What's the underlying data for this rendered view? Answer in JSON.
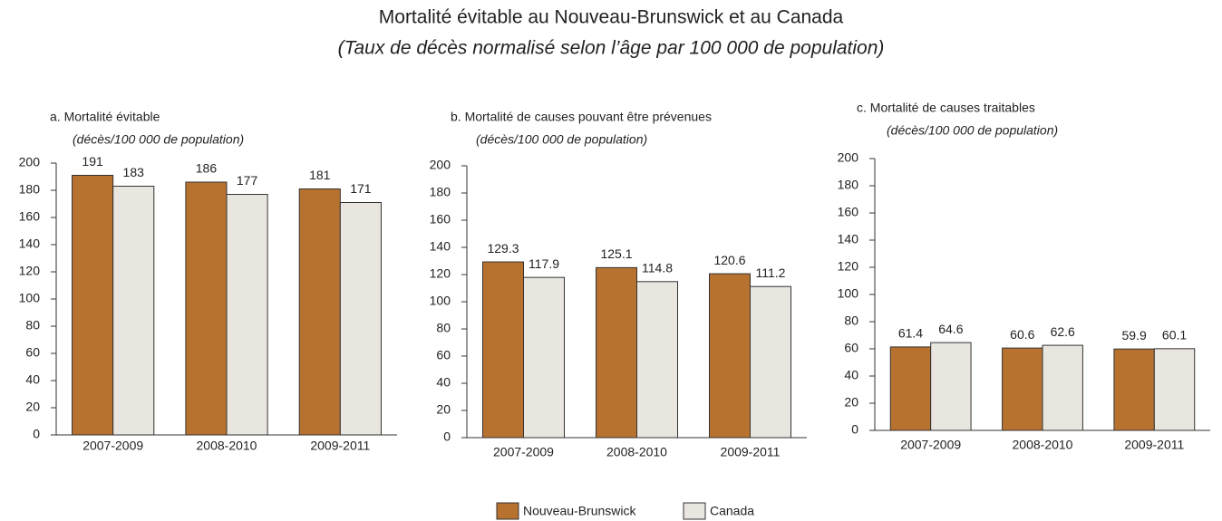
{
  "title": "Mortalité évitable au Nouveau-Brunswick et au Canada",
  "subtitle": "(Taux de décès normalisé selon l’âge par 100 000 de population)",
  "chart_data": [
    {
      "type": "bar",
      "title": "a.  Mortalité évitable",
      "subtitle": "(décès/100 000 de population)",
      "categories": [
        "2007-2009",
        "2008-2010",
        "2009-2011"
      ],
      "series": [
        {
          "name": "Nouveau-Brunswick",
          "color": "#b8722f",
          "values": [
            191,
            186,
            181
          ]
        },
        {
          "name": "Canada",
          "color": "#e9e5df",
          "values": [
            183,
            177,
            171
          ]
        }
      ],
      "ylim": [
        0,
        200
      ],
      "yticks": [
        0,
        20,
        40,
        60,
        80,
        100,
        120,
        140,
        160,
        180,
        200
      ]
    },
    {
      "type": "bar",
      "title": "b.  Mortalité de causes pouvant être prévenues",
      "subtitle": "(décès/100 000 de population)",
      "categories": [
        "2007-2009",
        "2008-2010",
        "2009-2011"
      ],
      "series": [
        {
          "name": "Nouveau-Brunswick",
          "color": "#b8722f",
          "values": [
            129.3,
            125.1,
            120.6
          ]
        },
        {
          "name": "Canada",
          "color": "#e9e5df",
          "values": [
            117.9,
            114.8,
            111.2
          ]
        }
      ],
      "ylim": [
        0,
        200
      ],
      "yticks": [
        0,
        20,
        40,
        60,
        80,
        100,
        120,
        140,
        160,
        180,
        200
      ]
    },
    {
      "type": "bar",
      "title": "c. Mortalité de causes traitables",
      "subtitle": "(décès/100 000 de population)",
      "categories": [
        "2007-2009",
        "2008-2010",
        "2009-2011"
      ],
      "series": [
        {
          "name": "Nouveau-Brunswick",
          "color": "#b8722f",
          "values": [
            61.4,
            60.6,
            59.9
          ]
        },
        {
          "name": "Canada",
          "color": "#e9e5df",
          "values": [
            64.6,
            62.6,
            60.1
          ]
        }
      ],
      "ylim": [
        0,
        200
      ],
      "yticks": [
        0,
        20,
        40,
        60,
        80,
        100,
        120,
        140,
        160,
        180,
        200
      ]
    }
  ]
}
